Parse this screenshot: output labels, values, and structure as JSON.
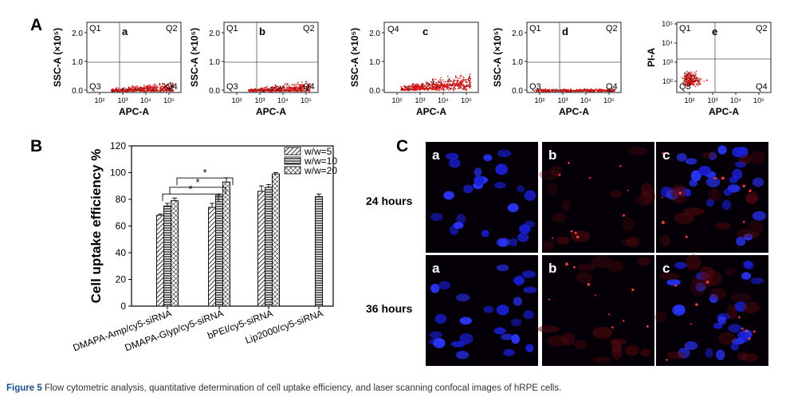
{
  "panel_labels": {
    "a": "A",
    "b": "B",
    "c": "C"
  },
  "flow_panels": {
    "xlabel": "APC-A",
    "x_ticks": [
      "10²",
      "10³",
      "10⁴",
      "10⁵"
    ],
    "ssc_ylabel": "SSC-A (×10⁵)",
    "ssc_y_ticks": [
      "0.0",
      "1.0",
      "2.0"
    ],
    "pi_ylabel": "PI-A",
    "pi_y_ticks": [
      "10²",
      "10³",
      "10⁴",
      "10⁵"
    ],
    "plots": [
      {
        "sub": "a",
        "quadrants": [
          "Q1",
          "Q2",
          "Q3",
          "Q4"
        ]
      },
      {
        "sub": "b",
        "quadrants": [
          "Q1",
          "Q2",
          "Q3",
          "Q4"
        ]
      },
      {
        "sub": "c",
        "quadrants": [
          "Q4"
        ]
      },
      {
        "sub": "d",
        "quadrants": [
          "Q1",
          "Q2",
          "Q3",
          "Q4"
        ]
      },
      {
        "sub": "e",
        "quadrants": [
          "Q1",
          "Q2",
          "Q3",
          "Q4"
        ]
      }
    ]
  },
  "chart_data": {
    "type": "bar",
    "ylabel": "Cell uptake efficiency %",
    "ylim": [
      0,
      120
    ],
    "y_ticks": [
      0,
      20,
      40,
      60,
      80,
      100,
      120
    ],
    "categories": [
      "DMAPA-Amp/cy5-siRNA",
      "DMAPA-Glyp/cy5-siRNA",
      "bPEI/cy5-siRNA",
      "Lip2000/cy5-siRNA"
    ],
    "series": [
      {
        "name": "w/w=5",
        "values": [
          68,
          74,
          86,
          null
        ],
        "errors": [
          1,
          3,
          4,
          null
        ]
      },
      {
        "name": "w/w=10",
        "values": [
          75,
          83,
          89,
          82
        ],
        "errors": [
          2,
          1,
          2,
          2
        ]
      },
      {
        "name": "w/w=20",
        "values": [
          79,
          93,
          99,
          null
        ],
        "errors": [
          2,
          3,
          1,
          null
        ]
      }
    ],
    "significance_marker": "*",
    "legend_position": "top-right"
  },
  "confocal": {
    "rows": [
      {
        "label": "24 hours",
        "subs": [
          "a",
          "b",
          "c"
        ]
      },
      {
        "label": "36 hours",
        "subs": [
          "a",
          "b",
          "c"
        ]
      }
    ]
  },
  "caption": {
    "label": "Figure 5",
    "text": "Flow cytometric analysis, quantitative determination of cell uptake efficiency, and laser scanning confocal images of hRPE cells."
  }
}
